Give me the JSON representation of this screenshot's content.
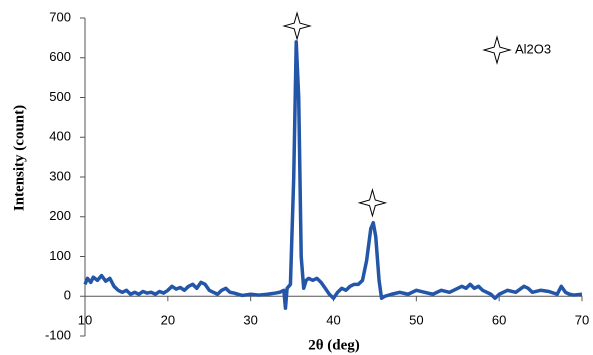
{
  "chart_data": {
    "type": "line",
    "xlabel": "2θ (deg)",
    "ylabel": "Intensity (count)",
    "xlim": [
      10,
      70
    ],
    "xticks": [
      10,
      20,
      30,
      40,
      50,
      60,
      70
    ],
    "ylim": [
      -100,
      700
    ],
    "yticks": [
      -100,
      0,
      100,
      200,
      300,
      400,
      500,
      600,
      700
    ],
    "legend": "upper right",
    "series": [
      {
        "color": "#2356a8",
        "x": [
          10.0,
          10.3,
          10.7,
          11.0,
          11.5,
          12.0,
          12.5,
          13.0,
          13.5,
          14,
          14.5,
          15,
          15.5,
          16,
          16.5,
          17,
          17.5,
          18,
          18.5,
          19,
          19.5,
          20,
          20.5,
          21,
          21.5,
          22,
          22.5,
          23,
          23.5,
          24,
          24.5,
          25,
          25.5,
          26,
          26.5,
          27,
          27.5,
          28,
          28.5,
          29,
          30,
          31,
          32,
          33,
          33.5,
          34,
          34.2,
          34.4,
          34.8,
          35.2,
          35.5,
          35.8,
          36.1,
          36.4,
          36.7,
          37,
          37.5,
          38,
          38.5,
          39,
          39.5,
          40,
          40.5,
          41,
          41.5,
          42,
          42.5,
          43,
          43.5,
          44,
          44.5,
          44.8,
          45.1,
          45.5,
          45.8,
          46.2,
          47,
          48,
          49,
          50,
          51,
          52,
          53,
          54,
          55,
          55.5,
          56,
          56.5,
          57,
          57.5,
          58,
          59,
          59.5,
          60,
          60.5,
          61,
          62,
          63,
          63.5,
          64,
          65,
          66,
          67,
          67.5,
          68,
          68.5,
          69,
          70
        ],
        "values": [
          30,
          45,
          35,
          48,
          40,
          52,
          38,
          45,
          25,
          15,
          10,
          15,
          5,
          10,
          5,
          12,
          8,
          10,
          5,
          12,
          8,
          15,
          25,
          18,
          22,
          15,
          25,
          30,
          20,
          35,
          30,
          15,
          10,
          5,
          15,
          20,
          10,
          8,
          5,
          2,
          5,
          3,
          5,
          8,
          10,
          15,
          -30,
          20,
          30,
          300,
          640,
          500,
          100,
          20,
          40,
          45,
          40,
          45,
          35,
          20,
          5,
          -5,
          10,
          20,
          15,
          25,
          30,
          30,
          40,
          90,
          170,
          185,
          150,
          40,
          -5,
          0,
          5,
          10,
          5,
          15,
          10,
          5,
          15,
          10,
          20,
          25,
          20,
          30,
          20,
          25,
          15,
          5,
          -5,
          5,
          10,
          15,
          10,
          25,
          20,
          10,
          15,
          12,
          5,
          25,
          10,
          5,
          3,
          5
        ]
      },
      {
        "type": "scatter",
        "name": "Al2O3",
        "marker": "star",
        "x": [
          35.6,
          44.7
        ],
        "values": [
          680,
          235
        ]
      }
    ]
  }
}
